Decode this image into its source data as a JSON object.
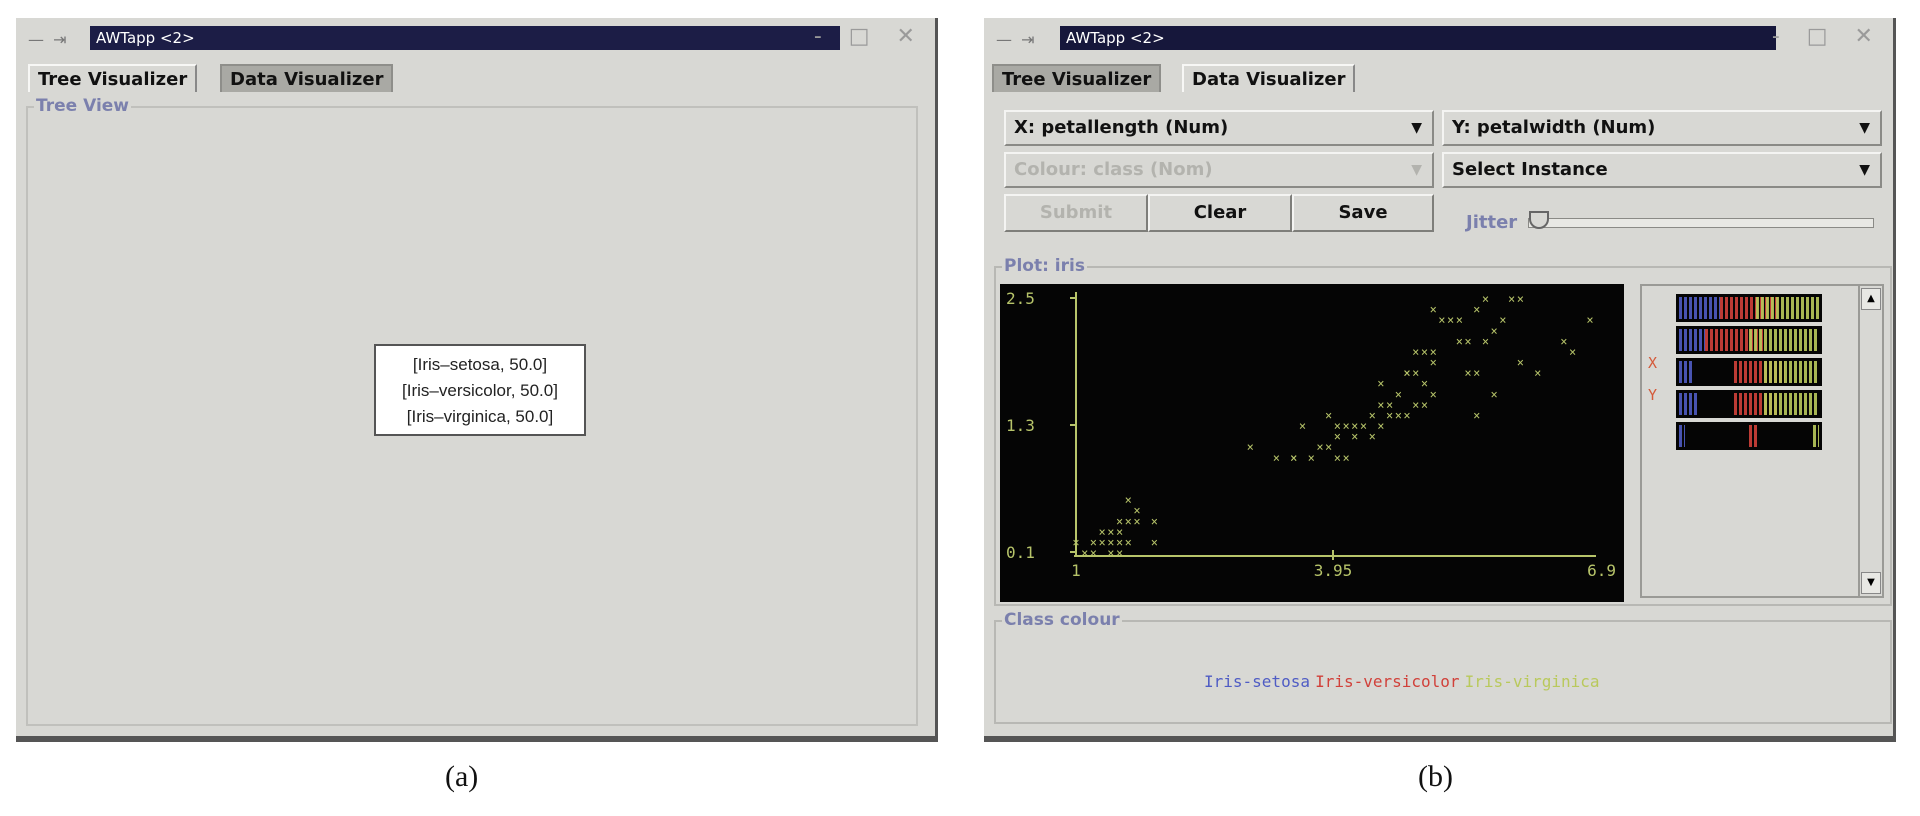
{
  "left_window": {
    "title": "AWTapp <2>",
    "tabs": [
      "Tree Visualizer",
      "Data Visualizer"
    ],
    "group_label": "Tree View",
    "node_lines": [
      "[Iris–setosa, 50.0]",
      "[Iris–versicolor, 50.0]",
      "[Iris–virginica, 50.0]"
    ]
  },
  "right_window": {
    "title": "AWTapp <2>",
    "tabs": [
      "Tree Visualizer",
      "Data Visualizer"
    ],
    "x_select": "X: petallength (Num)",
    "y_select": "Y: petalwidth (Num)",
    "colour_select": "Colour: class (Nom)",
    "instance_select": "Select Instance",
    "buttons": {
      "submit": "Submit",
      "clear": "Clear",
      "save": "Save"
    },
    "jitter_label": "Jitter",
    "jitter_value": 0,
    "plot_label": "Plot: iris",
    "x_mark": "X",
    "y_mark": "Y",
    "class_label": "Class colour",
    "legend": [
      "Iris-setosa",
      "Iris-versicolor",
      "Iris-virginica"
    ]
  },
  "colors": {
    "setosa": "#4f5cc4",
    "versicolor": "#d1413a",
    "virginica": "#b9c95c",
    "axis": "#b7c46a"
  },
  "chart_data": {
    "type": "scatter",
    "title": "",
    "xlabel": "petallength",
    "ylabel": "petalwidth",
    "x_ticks": [
      "1",
      "3.95",
      "6.9"
    ],
    "y_ticks": [
      "2.5",
      "1.3",
      "0.1"
    ],
    "xlim": [
      1,
      6.9
    ],
    "ylim": [
      0.1,
      2.5
    ],
    "series": [
      {
        "name": "Iris-setosa",
        "color": "#4f5cc4",
        "points": [
          [
            1.2,
            0.2
          ],
          [
            1.4,
            0.2
          ],
          [
            1.5,
            0.2
          ],
          [
            1.6,
            0.2
          ],
          [
            1.3,
            0.3
          ],
          [
            1.5,
            0.4
          ],
          [
            1.4,
            0.3
          ],
          [
            1.7,
            0.4
          ],
          [
            1.5,
            0.1
          ],
          [
            1.1,
            0.1
          ],
          [
            1.9,
            0.2
          ],
          [
            1.6,
            0.6
          ],
          [
            1.7,
            0.5
          ],
          [
            1.4,
            0.1
          ],
          [
            1.3,
            0.2
          ],
          [
            1.5,
            0.3
          ],
          [
            1.6,
            0.4
          ],
          [
            1.2,
            0.1
          ],
          [
            1.0,
            0.2
          ],
          [
            1.9,
            0.4
          ]
        ]
      },
      {
        "name": "Iris-versicolor",
        "color": "#d1413a",
        "points": [
          [
            3.0,
            1.1
          ],
          [
            3.3,
            1.0
          ],
          [
            3.5,
            1.0
          ],
          [
            3.6,
            1.3
          ],
          [
            3.7,
            1.0
          ],
          [
            3.8,
            1.1
          ],
          [
            3.9,
            1.1
          ],
          [
            3.9,
            1.4
          ],
          [
            4.0,
            1.3
          ],
          [
            4.0,
            1.2
          ],
          [
            4.1,
            1.3
          ],
          [
            4.2,
            1.3
          ],
          [
            4.3,
            1.3
          ],
          [
            4.4,
            1.4
          ],
          [
            4.5,
            1.5
          ],
          [
            4.6,
            1.4
          ],
          [
            4.7,
            1.4
          ],
          [
            4.7,
            1.6
          ],
          [
            4.8,
            1.8
          ],
          [
            4.9,
            1.5
          ],
          [
            5.0,
            1.7
          ],
          [
            5.1,
            1.6
          ],
          [
            4.5,
            1.3
          ],
          [
            4.4,
            1.2
          ],
          [
            4.2,
            1.2
          ],
          [
            4.0,
            1.0
          ],
          [
            3.5,
            1.0
          ],
          [
            4.6,
            1.5
          ],
          [
            4.8,
            1.4
          ],
          [
            4.1,
            1.0
          ]
        ]
      },
      {
        "name": "Iris-virginica",
        "color": "#b9c95c",
        "points": [
          [
            4.5,
            1.7
          ],
          [
            4.8,
            1.8
          ],
          [
            4.9,
            1.8
          ],
          [
            5.0,
            2.0
          ],
          [
            5.1,
            1.9
          ],
          [
            5.2,
            2.3
          ],
          [
            5.3,
            2.3
          ],
          [
            5.4,
            2.1
          ],
          [
            5.5,
            2.1
          ],
          [
            5.6,
            2.4
          ],
          [
            5.7,
            2.5
          ],
          [
            5.8,
            2.2
          ],
          [
            5.9,
            2.3
          ],
          [
            6.0,
            2.5
          ],
          [
            6.1,
            2.5
          ],
          [
            6.3,
            1.8
          ],
          [
            6.6,
            2.1
          ],
          [
            6.7,
            2.0
          ],
          [
            6.9,
            2.3
          ],
          [
            5.6,
            1.8
          ],
          [
            5.1,
            2.4
          ],
          [
            5.0,
            1.5
          ],
          [
            5.1,
            2.0
          ],
          [
            5.4,
            2.3
          ],
          [
            5.7,
            2.1
          ],
          [
            5.8,
            1.6
          ],
          [
            6.1,
            1.9
          ],
          [
            5.5,
            1.8
          ],
          [
            4.9,
            2.0
          ],
          [
            5.6,
            1.4
          ]
        ]
      }
    ]
  },
  "mini_plots": [
    {
      "setosa": [
        0.02,
        0.3
      ],
      "versicolor": [
        0.3,
        0.7
      ],
      "virginica": [
        0.55,
        0.98
      ]
    },
    {
      "setosa": [
        0.02,
        0.2
      ],
      "versicolor": [
        0.2,
        0.6
      ],
      "virginica": [
        0.5,
        0.98
      ]
    },
    {
      "setosa": [
        0.02,
        0.12
      ],
      "versicolor": [
        0.4,
        0.75
      ],
      "virginica": [
        0.6,
        0.98
      ]
    },
    {
      "setosa": [
        0.02,
        0.15
      ],
      "versicolor": [
        0.4,
        0.7
      ],
      "virginica": [
        0.6,
        0.98
      ]
    },
    {
      "setosa": [
        0.02,
        0.06
      ],
      "versicolor": [
        0.5,
        0.56
      ],
      "virginica": [
        0.94,
        0.98
      ]
    }
  ],
  "captions": [
    "(a)",
    "(b)"
  ]
}
